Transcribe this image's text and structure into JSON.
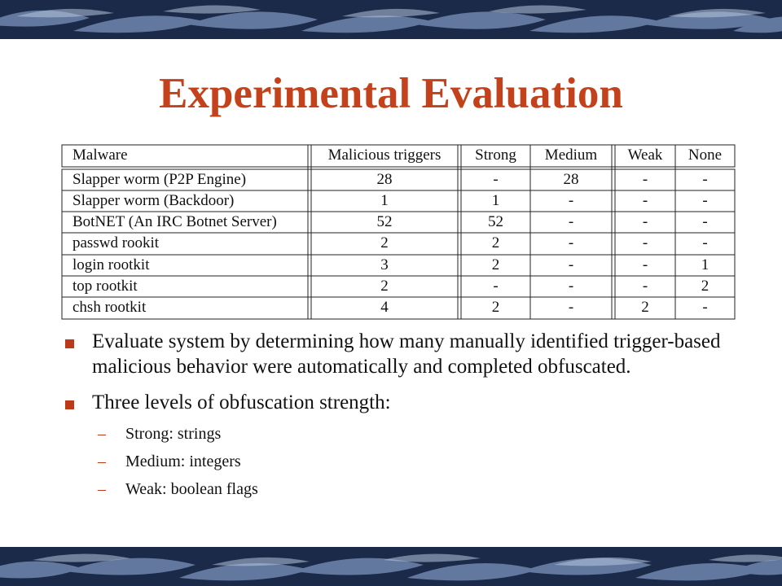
{
  "title": "Experimental Evaluation",
  "table": {
    "headers": [
      "Malware",
      "Malicious triggers",
      "Strong",
      "Medium",
      "Weak",
      "None"
    ],
    "rows": [
      [
        "Slapper worm (P2P Engine)",
        "28",
        "-",
        "28",
        "-",
        "-"
      ],
      [
        "Slapper worm (Backdoor)",
        "1",
        "1",
        "-",
        "-",
        "-"
      ],
      [
        "BotNET (An IRC Botnet Server)",
        "52",
        "52",
        "-",
        "-",
        "-"
      ],
      [
        "passwd rookit",
        "2",
        "2",
        "-",
        "-",
        "-"
      ],
      [
        "login rootkit",
        "3",
        "2",
        "-",
        "-",
        "1"
      ],
      [
        "top rootkit",
        "2",
        "-",
        "-",
        "-",
        "2"
      ],
      [
        "chsh rootkit",
        "4",
        "2",
        "-",
        "2",
        "-"
      ]
    ]
  },
  "bullets": [
    {
      "text": "Evaluate system by determining how many manually identified trigger-based malicious behavior were automatically and completed obfuscated."
    },
    {
      "text": "Three levels of obfuscation strength:"
    }
  ],
  "sub_bullets": [
    {
      "dash": "–",
      "text": "Strong:  strings"
    },
    {
      "dash": "–",
      "text": "Medium: integers"
    },
    {
      "dash": "–",
      "text": "Weak: boolean flags"
    }
  ],
  "colors": {
    "title": "#c3421c",
    "bullet_marker": "#bd3a18",
    "band_dark": "#1b2a48",
    "band_light": "#7c93b8"
  }
}
